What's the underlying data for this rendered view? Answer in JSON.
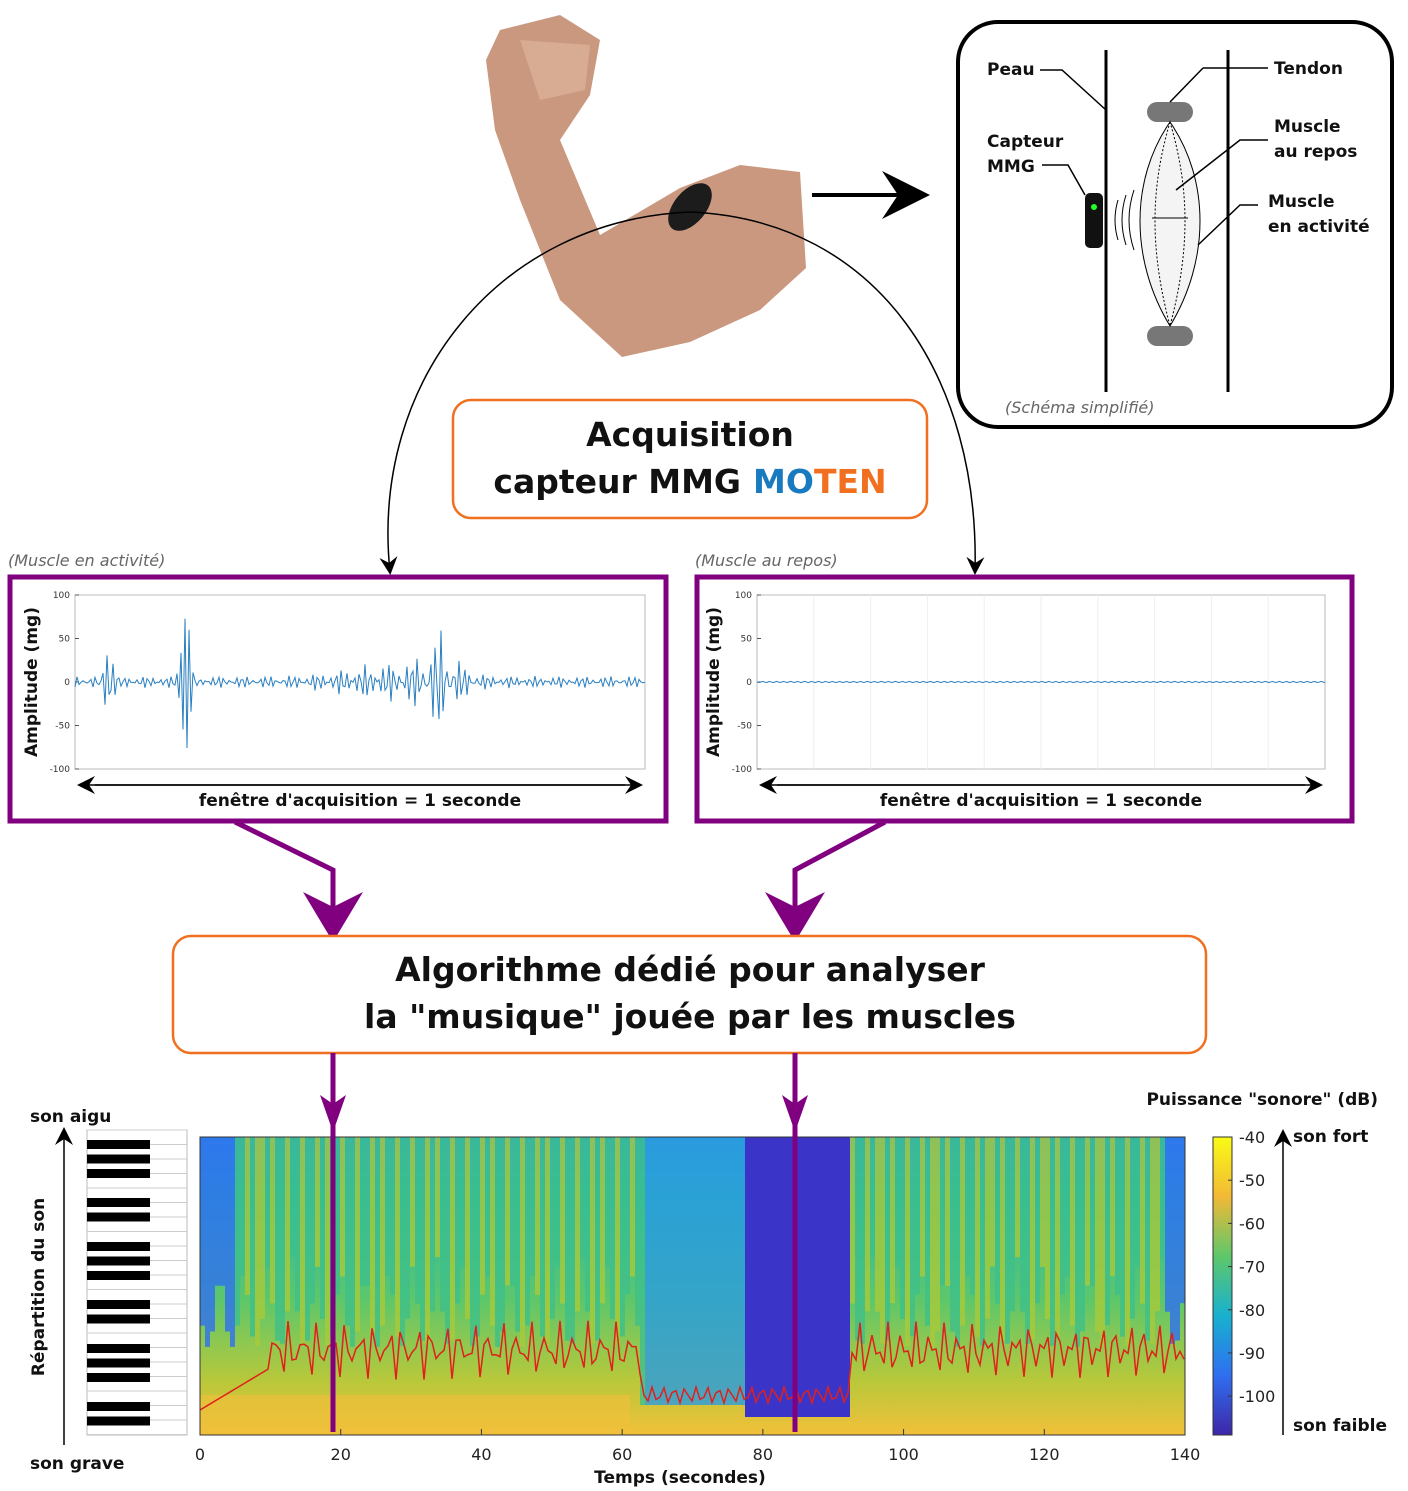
{
  "schema": {
    "skin": "Peau",
    "tendon": "Tendon",
    "sensor": [
      "Capteur",
      "MMG"
    ],
    "muscle_rest": [
      "Muscle",
      "au repos"
    ],
    "muscle_active": [
      "Muscle",
      "en activité"
    ],
    "caption": "(Schéma simplifié)"
  },
  "acquisition": {
    "lines": [
      "Acquisition",
      "capteur MMG"
    ],
    "brand": [
      "MO",
      "TEN"
    ]
  },
  "signals": [
    {
      "caption": "(Muscle en activité)",
      "ylabel": "Amplitude (mg)",
      "ylim": [
        -100,
        100
      ],
      "yticks": [
        -100,
        -50,
        0,
        50,
        100
      ],
      "window": "fenêtre d'acquisition = 1 seconde"
    },
    {
      "caption": "(Muscle au repos)",
      "ylabel": "Amplitude (mg)",
      "ylim": [
        -100,
        100
      ],
      "yticks": [
        -100,
        -50,
        0,
        50,
        100
      ],
      "window": "fenêtre d'acquisition = 1 seconde"
    }
  ],
  "algorithm": {
    "lines": [
      "Algorithme dédié pour analyser",
      "la \"musique\" jouée par les muscles"
    ]
  },
  "spectrogram": {
    "ylabel": "Répartition du son",
    "high": "son aigu",
    "low": "son grave",
    "xlabel": "Temps (secondes)",
    "xlim": [
      0,
      140
    ],
    "xticks": [
      0,
      20,
      40,
      60,
      80,
      100,
      120,
      140
    ],
    "colorbar": {
      "title": "Puissance \"sonore\" (dB)",
      "lim": [
        -109,
        -40
      ],
      "ticks": [
        -40,
        -50,
        -60,
        -70,
        -80,
        -90,
        -100
      ],
      "high": "son fort",
      "low": "son faible"
    }
  }
}
